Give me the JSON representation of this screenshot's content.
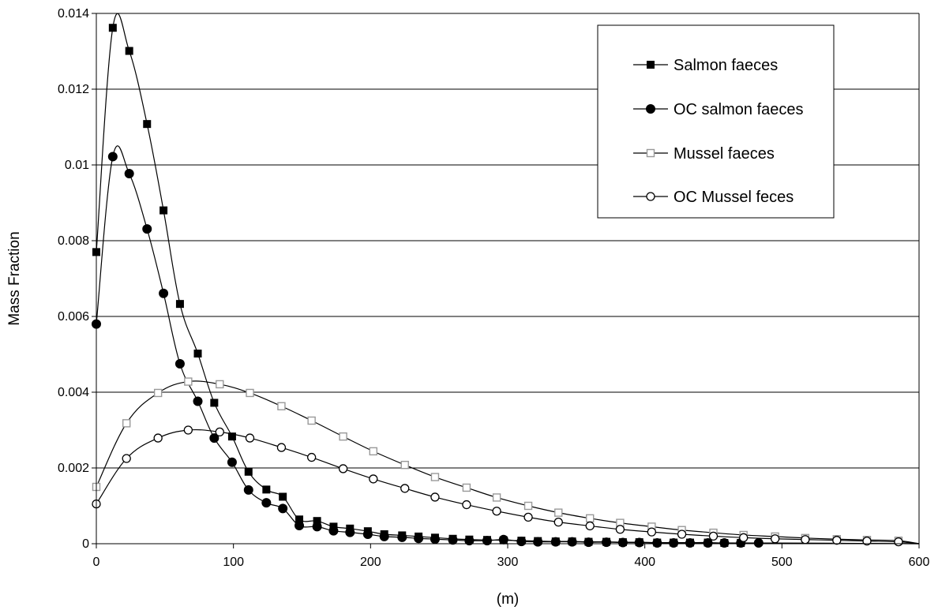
{
  "chart_data": {
    "type": "line",
    "title": "",
    "xlabel": "(m)",
    "ylabel": "Mass Fraction",
    "xlim": [
      0,
      600
    ],
    "ylim": [
      0,
      0.014
    ],
    "x_ticks": [
      0,
      100,
      200,
      300,
      400,
      500,
      600
    ],
    "y_ticks": [
      "0",
      "0.002",
      "0.004",
      "0.006",
      "0.008",
      "0.01",
      "0.012",
      "0.014"
    ],
    "grid": "horizontal",
    "legend_position": "top-right",
    "series": [
      {
        "name": "Salmon faeces",
        "marker": "filled-square",
        "color": "#000000",
        "points": [
          [
            0,
            0.0077
          ],
          [
            12,
            0.01362
          ],
          [
            24,
            0.01301
          ],
          [
            37,
            0.01108
          ],
          [
            49,
            0.0088
          ],
          [
            61,
            0.00633
          ],
          [
            74,
            0.00502
          ],
          [
            86,
            0.00372
          ],
          [
            99,
            0.00283
          ],
          [
            111,
            0.0019
          ],
          [
            124,
            0.00143
          ],
          [
            136,
            0.00124
          ],
          [
            148,
            0.00064
          ],
          [
            161,
            0.0006
          ],
          [
            173,
            0.00045
          ],
          [
            185,
            0.0004
          ],
          [
            198,
            0.00033
          ],
          [
            210,
            0.00025
          ],
          [
            223,
            0.00022
          ],
          [
            235,
            0.00019
          ],
          [
            247,
            0.00016
          ],
          [
            260,
            0.00013
          ],
          [
            272,
            0.00011
          ],
          [
            285,
            0.0001
          ],
          [
            297,
            9e-05
          ],
          [
            310,
            8e-05
          ],
          [
            322,
            7e-05
          ],
          [
            335,
            6e-05
          ],
          [
            347,
            6e-05
          ],
          [
            359,
            5e-05
          ],
          [
            372,
            5e-05
          ],
          [
            384,
            4e-05
          ],
          [
            396,
            4e-05
          ],
          [
            409,
            3e-05
          ],
          [
            421,
            3e-05
          ],
          [
            433,
            3e-05
          ],
          [
            446,
            3e-05
          ],
          [
            458,
            2e-05
          ],
          [
            470,
            2e-05
          ]
        ]
      },
      {
        "name": "OC salmon faeces",
        "marker": "filled-circle",
        "color": "#000000",
        "points": [
          [
            0,
            0.0058
          ],
          [
            12,
            0.01022
          ],
          [
            24,
            0.00977
          ],
          [
            37,
            0.00831
          ],
          [
            49,
            0.00661
          ],
          [
            61,
            0.00475
          ],
          [
            74,
            0.00376
          ],
          [
            86,
            0.00279
          ],
          [
            99,
            0.00215
          ],
          [
            111,
            0.00142
          ],
          [
            124,
            0.00108
          ],
          [
            136,
            0.00093
          ],
          [
            148,
            0.00048
          ],
          [
            161,
            0.00045
          ],
          [
            173,
            0.00034
          ],
          [
            185,
            0.0003
          ],
          [
            198,
            0.00025
          ],
          [
            210,
            0.00019
          ],
          [
            223,
            0.00017
          ],
          [
            235,
            0.00014
          ],
          [
            247,
            0.00012
          ],
          [
            260,
            0.0001
          ],
          [
            272,
            8e-05
          ],
          [
            285,
            8e-05
          ],
          [
            297,
            0.00011
          ],
          [
            310,
            6e-05
          ],
          [
            322,
            5e-05
          ],
          [
            335,
            5e-05
          ],
          [
            347,
            5e-05
          ],
          [
            359,
            4e-05
          ],
          [
            372,
            4e-05
          ],
          [
            384,
            3e-05
          ],
          [
            396,
            3e-05
          ],
          [
            409,
            2e-05
          ],
          [
            421,
            2e-05
          ],
          [
            433,
            2e-05
          ],
          [
            446,
            2e-05
          ],
          [
            458,
            2e-05
          ],
          [
            470,
            2e-05
          ],
          [
            483,
            2e-05
          ]
        ]
      },
      {
        "name": "Mussel faeces",
        "marker": "open-square",
        "color": "#999999",
        "points": [
          [
            0,
            0.0015
          ],
          [
            22,
            0.00318
          ],
          [
            45,
            0.00398
          ],
          [
            67,
            0.00428
          ],
          [
            90,
            0.00421
          ],
          [
            112,
            0.00398
          ],
          [
            135,
            0.00363
          ],
          [
            157,
            0.00325
          ],
          [
            180,
            0.00283
          ],
          [
            202,
            0.00244
          ],
          [
            225,
            0.00208
          ],
          [
            247,
            0.00176
          ],
          [
            270,
            0.00148
          ],
          [
            292,
            0.00122
          ],
          [
            315,
            0.001
          ],
          [
            337,
            0.00082
          ],
          [
            360,
            0.00067
          ],
          [
            382,
            0.00055
          ],
          [
            405,
            0.00045
          ],
          [
            427,
            0.00036
          ],
          [
            450,
            0.00029
          ],
          [
            472,
            0.00023
          ],
          [
            495,
            0.00019
          ],
          [
            517,
            0.00015
          ],
          [
            540,
            0.00012
          ],
          [
            562,
            0.0001
          ],
          [
            585,
            8e-05
          ]
        ]
      },
      {
        "name": "OC Mussel feces",
        "marker": "open-circle",
        "color": "#000000",
        "points": [
          [
            0,
            0.00105
          ],
          [
            22,
            0.00225
          ],
          [
            45,
            0.00279
          ],
          [
            67,
            0.003
          ],
          [
            90,
            0.00295
          ],
          [
            112,
            0.00279
          ],
          [
            135,
            0.00254
          ],
          [
            157,
            0.00228
          ],
          [
            180,
            0.00198
          ],
          [
            202,
            0.00171
          ],
          [
            225,
            0.00146
          ],
          [
            247,
            0.00123
          ],
          [
            270,
            0.00103
          ],
          [
            292,
            0.00086
          ],
          [
            315,
            0.0007
          ],
          [
            337,
            0.00057
          ],
          [
            360,
            0.00047
          ],
          [
            382,
            0.00038
          ],
          [
            405,
            0.00031
          ],
          [
            427,
            0.00025
          ],
          [
            450,
            0.0002
          ],
          [
            472,
            0.00016
          ],
          [
            495,
            0.00013
          ],
          [
            517,
            0.00011
          ],
          [
            540,
            9e-05
          ],
          [
            562,
            7e-05
          ],
          [
            585,
            5e-05
          ]
        ]
      }
    ]
  }
}
